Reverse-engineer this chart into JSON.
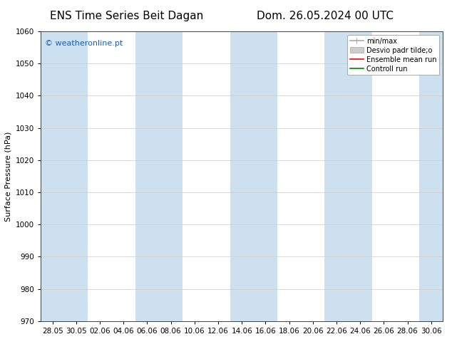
{
  "title_left": "ENS Time Series Beit Dagan",
  "title_right": "Dom. 26.05.2024 00 UTC",
  "ylabel": "Surface Pressure (hPa)",
  "ylim": [
    970,
    1060
  ],
  "yticks": [
    970,
    980,
    990,
    1000,
    1010,
    1020,
    1030,
    1040,
    1050,
    1060
  ],
  "xlabel_ticks": [
    "28.05",
    "30.05",
    "02.06",
    "04.06",
    "06.06",
    "08.06",
    "10.06",
    "12.06",
    "14.06",
    "16.06",
    "18.06",
    "20.06",
    "22.06",
    "24.06",
    "26.06",
    "28.06",
    "30.06"
  ],
  "watermark": "© weatheronline.pt",
  "watermark_color": "#1a5fb4",
  "background_color": "#ffffff",
  "plot_bg_color": "#ffffff",
  "shaded_color": "#cde0f0",
  "legend_entries": [
    {
      "label": "min/max",
      "color": "#aaaaaa",
      "lw": 1.2
    },
    {
      "label": "Desvio padr tilde;o",
      "color": "#cccccc",
      "lw": 6
    },
    {
      "label": "Ensemble mean run",
      "color": "#ff0000",
      "lw": 1.2
    },
    {
      "label": "Controll run",
      "color": "#008000",
      "lw": 1.2
    }
  ],
  "title_fontsize": 11,
  "tick_fontsize": 7.5,
  "ylabel_fontsize": 8,
  "watermark_fontsize": 8,
  "legend_fontsize": 7
}
